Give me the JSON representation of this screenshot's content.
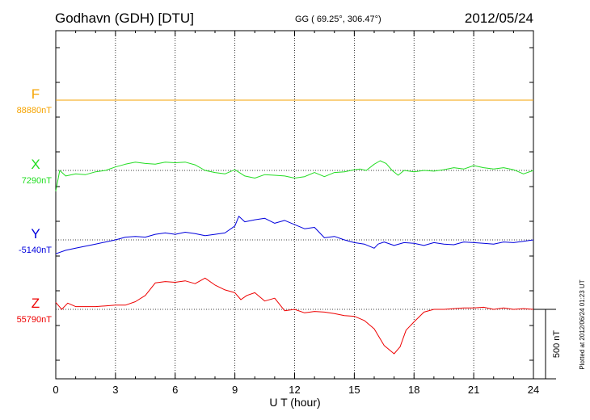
{
  "header": {
    "station": "Godhavn (GDH)  [DTU]",
    "coords": "GG ( 69.25°, 306.47°)",
    "date": "2012/05/24"
  },
  "plotted_note": "Plotted at 2012/06/24 01:23 UT",
  "chart_data": {
    "type": "line",
    "title": "Godhavn (GDH)  [DTU]",
    "xlabel": "U T (hour)",
    "ylabel": "",
    "xlim": [
      0,
      24
    ],
    "x_ticks": [
      "0",
      "3",
      "6",
      "9",
      "12",
      "15",
      "18",
      "21",
      "24"
    ],
    "grid": true,
    "scale_bar": {
      "label": "500 nT",
      "value_nT": 500
    },
    "series": [
      {
        "name": "F",
        "baseline_label": "88880nT",
        "baseline_nT": 88880,
        "color": "#f5a300",
        "x": [
          0,
          24
        ],
        "y": [
          0,
          0
        ]
      },
      {
        "name": "X",
        "baseline_label": "7290nT",
        "baseline_nT": 7290,
        "color": "#22dd22",
        "x": [
          0,
          0.2,
          0.5,
          1,
          1.5,
          2,
          2.5,
          3,
          3.5,
          4,
          4.5,
          5,
          5.5,
          6,
          6.5,
          7,
          7.5,
          8,
          8.5,
          9,
          9.5,
          10,
          10.5,
          11,
          11.5,
          12,
          12.5,
          13,
          13.5,
          14,
          14.5,
          15,
          15.3,
          15.6,
          16,
          16.3,
          16.6,
          16.9,
          17.2,
          17.5,
          18,
          18.5,
          19,
          19.5,
          20,
          20.5,
          21,
          21.5,
          22,
          22.5,
          23,
          23.5,
          24
        ],
        "y": [
          -150,
          0,
          -40,
          -25,
          -30,
          -10,
          0,
          25,
          45,
          60,
          50,
          45,
          60,
          55,
          60,
          40,
          0,
          -15,
          -25,
          5,
          -40,
          -55,
          -30,
          -35,
          -40,
          -55,
          -45,
          -15,
          -45,
          -15,
          -10,
          5,
          10,
          0,
          45,
          70,
          50,
          0,
          -35,
          0,
          -10,
          0,
          -5,
          5,
          20,
          10,
          35,
          20,
          10,
          20,
          5,
          -25,
          0
        ]
      },
      {
        "name": "Y",
        "baseline_label": "-5140nT",
        "baseline_nT": -5140,
        "color": "#0000dd",
        "x": [
          0,
          0.5,
          1,
          1.5,
          2,
          2.5,
          3,
          3.5,
          4,
          4.5,
          5,
          5.5,
          6,
          6.5,
          7,
          7.5,
          8,
          8.5,
          9,
          9.2,
          9.5,
          10,
          10.5,
          11,
          11.5,
          12,
          12.5,
          13,
          13.5,
          14,
          14.5,
          15,
          15.5,
          16,
          16.2,
          16.5,
          17,
          17.5,
          18,
          18.5,
          19,
          19.5,
          20,
          20.5,
          21,
          21.5,
          22,
          22.5,
          23,
          23.5,
          24
        ],
        "y": [
          -100,
          -75,
          -60,
          -45,
          -30,
          -15,
          0,
          20,
          25,
          20,
          40,
          50,
          40,
          55,
          45,
          30,
          40,
          50,
          100,
          170,
          130,
          145,
          155,
          120,
          140,
          110,
          80,
          90,
          15,
          25,
          0,
          -20,
          -30,
          -60,
          -30,
          -15,
          -40,
          -20,
          -25,
          -40,
          -20,
          -30,
          -35,
          -15,
          -20,
          -25,
          -30,
          -15,
          -20,
          -10,
          0
        ]
      },
      {
        "name": "Z",
        "baseline_label": "55790nT",
        "baseline_nT": 55790,
        "color": "#ee0000",
        "x": [
          0,
          0.3,
          0.6,
          1,
          1.5,
          2,
          2.5,
          3,
          3.5,
          4,
          4.5,
          5,
          5.5,
          6,
          6.5,
          7,
          7.5,
          8,
          8.5,
          9,
          9.3,
          9.6,
          10,
          10.5,
          11,
          11.5,
          12,
          12.5,
          13,
          13.5,
          14,
          14.5,
          15,
          15.5,
          16,
          16.5,
          17,
          17.3,
          17.6,
          18,
          18.5,
          19,
          19.5,
          20,
          20.5,
          21,
          21.5,
          22,
          22.5,
          23,
          23.5,
          24
        ],
        "y": [
          50,
          0,
          45,
          20,
          20,
          20,
          25,
          30,
          30,
          55,
          100,
          190,
          200,
          195,
          205,
          185,
          225,
          175,
          140,
          120,
          70,
          100,
          120,
          60,
          80,
          -10,
          0,
          -25,
          -15,
          -20,
          -30,
          -45,
          -50,
          -80,
          -140,
          -260,
          -320,
          -270,
          -150,
          -90,
          -20,
          0,
          0,
          5,
          10,
          10,
          15,
          0,
          10,
          0,
          5,
          0
        ]
      }
    ]
  }
}
